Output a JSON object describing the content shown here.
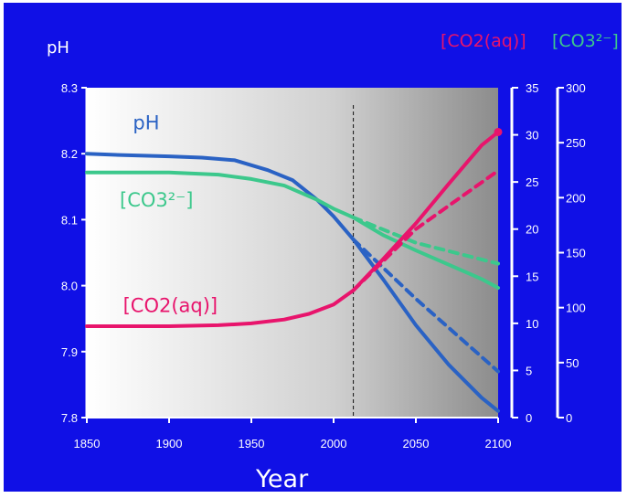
{
  "chart_data": {
    "type": "line",
    "title": "",
    "xlabel": "Year",
    "xlim": [
      1850,
      2100
    ],
    "x_ticks": [
      1850,
      1900,
      1950,
      2000,
      2050,
      2100
    ],
    "reference_line_x": 2012,
    "left_axis": {
      "label": "pH",
      "lim": [
        7.8,
        8.3
      ],
      "ticks": [
        "8.3",
        "8.2",
        "8.1",
        "8.0",
        "7.9",
        "7.8"
      ]
    },
    "right_axis_1": {
      "label": "[CO2(aq)]",
      "lim": [
        0,
        35
      ],
      "ticks": [
        "35",
        "30",
        "25",
        "20",
        "15",
        "10",
        "5",
        "0"
      ]
    },
    "right_axis_2": {
      "label": "[CO3²⁻]",
      "lim": [
        0,
        300
      ],
      "ticks": [
        "300",
        "250",
        "200",
        "150",
        "100",
        "50",
        "0"
      ]
    },
    "colors": {
      "background": "#1010e6",
      "ph": "#2a62c4",
      "co3": "#3cc88c",
      "co2": "#e8146c",
      "axis": "#ffffff"
    },
    "series": [
      {
        "name": "pH",
        "axis": "left",
        "color": "#2a62c4",
        "x": [
          1850,
          1870,
          1900,
          1920,
          1940,
          1960,
          1975,
          1990,
          2000,
          2012,
          2030,
          2050,
          2070,
          2090,
          2100
        ],
        "y": [
          8.2,
          8.198,
          8.196,
          8.194,
          8.19,
          8.175,
          8.16,
          8.13,
          8.105,
          8.07,
          8.01,
          7.94,
          7.88,
          7.83,
          7.81
        ]
      },
      {
        "name": "pH (dashed)",
        "axis": "left",
        "color": "#2a62c4",
        "dashed": true,
        "x": [
          2012,
          2050,
          2100
        ],
        "y": [
          8.07,
          7.98,
          7.87
        ]
      },
      {
        "name": "[CO3²⁻]",
        "axis": "right_2",
        "color": "#3cc88c",
        "x": [
          1850,
          1900,
          1930,
          1950,
          1970,
          1990,
          2000,
          2012,
          2030,
          2050,
          2070,
          2090,
          2100
        ],
        "y": [
          223,
          223,
          221,
          217,
          211,
          198,
          190,
          182,
          166,
          152,
          139,
          126,
          118
        ]
      },
      {
        "name": "[CO3²⁻] (dashed)",
        "axis": "right_2",
        "color": "#3cc88c",
        "dashed": true,
        "x": [
          2012,
          2050,
          2100
        ],
        "y": [
          182,
          159,
          140
        ]
      },
      {
        "name": "[CO2(aq)]",
        "axis": "right_1",
        "color": "#e8146c",
        "x": [
          1850,
          1900,
          1930,
          1950,
          1970,
          1985,
          2000,
          2012,
          2030,
          2050,
          2070,
          2090,
          2100
        ],
        "y": [
          9.7,
          9.7,
          9.8,
          10.0,
          10.4,
          11.0,
          12.0,
          13.5,
          16.8,
          20.6,
          24.8,
          28.9,
          30.3
        ]
      },
      {
        "name": "[CO2(aq)] (dashed)",
        "axis": "right_1",
        "color": "#e8146c",
        "dashed": true,
        "x": [
          2012,
          2050,
          2100
        ],
        "y": [
          13.5,
          20.0,
          26.2
        ]
      }
    ],
    "annotations": [
      {
        "text": "pH",
        "x": 1878,
        "y": 8.237,
        "axis": "left",
        "color": "#2a62c4"
      },
      {
        "text": "[CO3²⁻]",
        "x": 1870,
        "y": 8.12,
        "axis": "left",
        "color": "#3cc88c"
      },
      {
        "text": "[CO2(aq)]",
        "x": 1872,
        "y": 7.96,
        "axis": "left",
        "color": "#e8146c"
      }
    ]
  }
}
